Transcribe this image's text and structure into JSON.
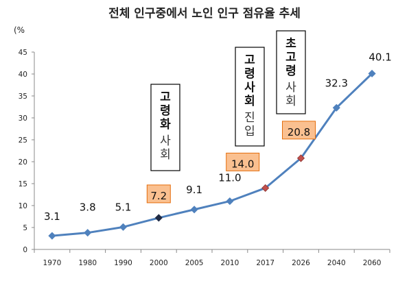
{
  "chart_data": {
    "type": "line",
    "title": "전체 인구중에서 노인 인구 점유율 추세",
    "unit_label": "(%",
    "categories": [
      "1970",
      "1980",
      "1990",
      "2000",
      "2005",
      "2010",
      "2017",
      "2026",
      "2040",
      "2060"
    ],
    "values": [
      3.1,
      3.8,
      5.1,
      7.2,
      9.1,
      11.0,
      14.0,
      20.8,
      32.3,
      40.1
    ],
    "data_labels": [
      "3.1",
      "3.8",
      "5.1",
      "7.2",
      "9.1",
      "11.0",
      "14.0",
      "20.8",
      "32.3",
      "40.1"
    ],
    "highlighted_labels": [
      "7.2",
      "14.0",
      "20.8"
    ],
    "ylim": [
      0,
      45
    ],
    "yticks": [
      "0",
      "5",
      "10",
      "15",
      "20",
      "25",
      "30",
      "35",
      "40",
      "45"
    ],
    "grid": false,
    "legend": "none",
    "colors": {
      "line": "#4F81BD",
      "marker": "#4F81BD",
      "marker_2000": "#1F2A44",
      "marker_highlight": "#C0504D",
      "highlight_box_fill": "#FAC090",
      "highlight_box_border": "#E46C0A"
    },
    "annotations": [
      {
        "bold": "고령화",
        "normal": "사회",
        "category": "2000"
      },
      {
        "bold": "고령사회",
        "normal": "진입",
        "category": "2017"
      },
      {
        "bold": "초고령",
        "normal": "사회",
        "category": "2026"
      }
    ]
  }
}
